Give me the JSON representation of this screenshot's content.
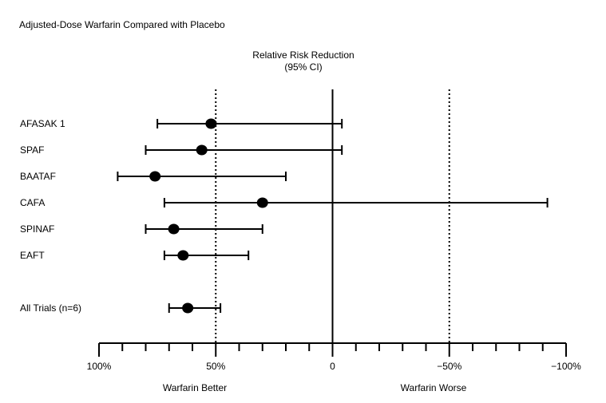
{
  "chart_data": {
    "type": "forest",
    "title": "Adjusted-Dose Warfarin Compared with Placebo",
    "axis_title": "Relative Risk Reduction",
    "axis_subtitle": "(95% CI)",
    "xlabel_left": "Warfarin Better",
    "xlabel_right": "Warfarin Worse",
    "xlim": [
      100,
      -100
    ],
    "xticks": [
      100,
      50,
      0,
      -50,
      -100
    ],
    "xtick_labels": [
      "100%",
      "50%",
      "0",
      "−50%",
      "−100%"
    ],
    "minor_tick_step": 10,
    "reference_lines": [
      {
        "x": 50,
        "style": "dotted"
      },
      {
        "x": 0,
        "style": "solid"
      },
      {
        "x": -50,
        "style": "dotted"
      }
    ],
    "studies": [
      {
        "label": "AFASAK 1",
        "estimate": 52,
        "ci_low": -4,
        "ci_high": 75
      },
      {
        "label": "SPAF",
        "estimate": 56,
        "ci_low": -4,
        "ci_high": 80
      },
      {
        "label": "BAATAF",
        "estimate": 76,
        "ci_low": 20,
        "ci_high": 92
      },
      {
        "label": "CAFA",
        "estimate": 30,
        "ci_low": -92,
        "ci_high": 72
      },
      {
        "label": "SPINAF",
        "estimate": 68,
        "ci_low": 30,
        "ci_high": 80
      },
      {
        "label": "EAFT",
        "estimate": 64,
        "ci_low": 36,
        "ci_high": 72
      }
    ],
    "summary": {
      "label": "All Trials (n=6)",
      "estimate": 62,
      "ci_low": 48,
      "ci_high": 70
    }
  }
}
